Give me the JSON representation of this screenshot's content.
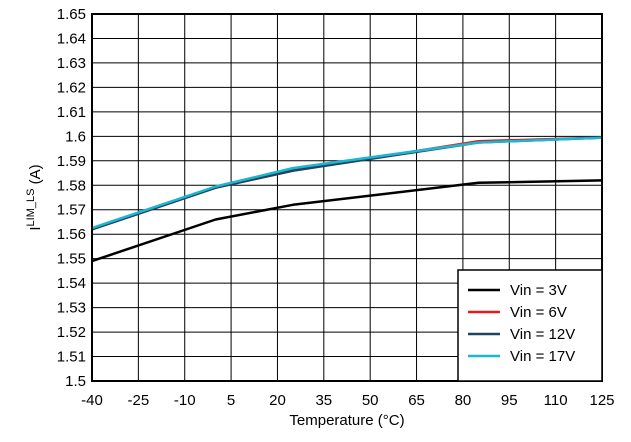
{
  "chart_data": {
    "type": "line",
    "xlabel": "Temperature (°C)",
    "ylabel_main": "I",
    "ylabel_sub": "LIM_LS",
    "ylabel_unit": " (A)",
    "xlim": [
      -40,
      125
    ],
    "ylim": [
      1.5,
      1.65
    ],
    "x_ticks": [
      -40,
      -25,
      -10,
      5,
      20,
      35,
      50,
      65,
      80,
      95,
      110,
      125
    ],
    "y_ticks": [
      "1.5",
      "1.51",
      "1.52",
      "1.53",
      "1.54",
      "1.55",
      "1.56",
      "1.57",
      "1.58",
      "1.59",
      "1.6",
      "1.61",
      "1.62",
      "1.63",
      "1.64",
      "1.65"
    ],
    "grid": true,
    "legend_position": "bottom-right",
    "series": [
      {
        "name": "Vin = 3V",
        "color": "#000000",
        "x": [
          -40,
          0,
          25,
          85,
          125
        ],
        "y": [
          1.549,
          1.566,
          1.572,
          1.581,
          1.582
        ]
      },
      {
        "name": "Vin = 6V",
        "color": "#e41a1c",
        "x": [
          -40,
          0,
          25,
          85,
          125
        ],
        "y": [
          1.562,
          1.579,
          1.586,
          1.598,
          1.5995
        ]
      },
      {
        "name": "Vin = 12V",
        "color": "#1e4560",
        "x": [
          -40,
          0,
          25,
          85,
          125
        ],
        "y": [
          1.562,
          1.579,
          1.586,
          1.5975,
          1.5995
        ]
      },
      {
        "name": "Vin = 17V",
        "color": "#1ab6d4",
        "x": [
          -40,
          0,
          25,
          85,
          125
        ],
        "y": [
          1.5625,
          1.5795,
          1.587,
          1.5975,
          1.5995
        ]
      }
    ]
  }
}
